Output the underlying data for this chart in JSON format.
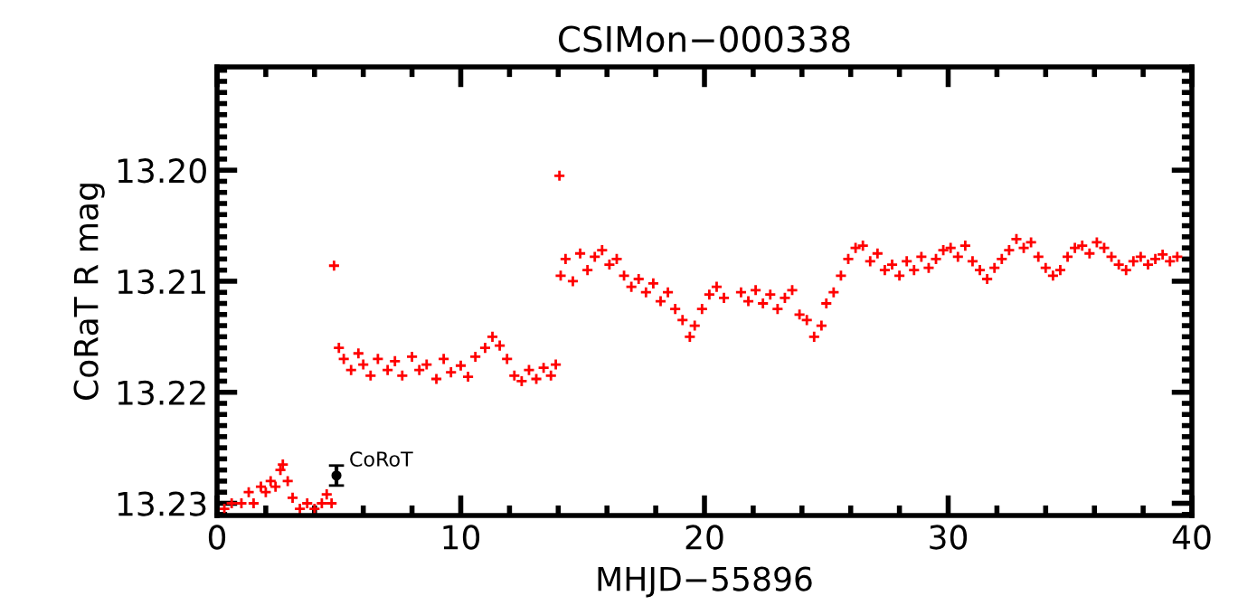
{
  "chart_data": {
    "type": "scatter",
    "title": "CSIMon−000338",
    "xlabel": "MHJD−55896",
    "ylabel": "CoRaT R mag",
    "xlim": [
      0,
      40
    ],
    "ylim": [
      13.2311,
      13.1907
    ],
    "xticks": [
      0,
      10,
      20,
      30,
      40
    ],
    "yticks": [
      {
        "value": 13.2,
        "label": "13.20"
      },
      {
        "value": 13.21,
        "label": "13.21"
      },
      {
        "value": 13.22,
        "label": "13.22"
      },
      {
        "value": 13.23,
        "label": "13.23"
      }
    ],
    "grid": false,
    "marker": "cross",
    "series": [
      {
        "color": "#ff0000",
        "x": [
          0.3,
          0.6,
          1.0,
          1.3,
          1.5,
          1.8,
          2.0,
          2.2,
          2.4,
          2.6,
          2.7,
          2.9,
          3.1,
          3.4,
          3.7,
          4.0,
          4.3,
          4.5,
          4.7,
          4.8,
          5.0,
          5.2,
          5.5,
          5.8,
          6.0,
          6.3,
          6.6,
          7.0,
          7.3,
          7.6,
          8.0,
          8.3,
          8.6,
          9.0,
          9.3,
          9.6,
          10.0,
          10.3,
          10.6,
          11.0,
          11.3,
          11.6,
          11.9,
          12.2,
          12.5,
          12.8,
          13.1,
          13.4,
          13.7,
          13.9,
          14.05,
          14.1,
          14.3,
          14.6,
          14.9,
          15.2,
          15.5,
          15.8,
          16.1,
          16.4,
          16.7,
          17.0,
          17.3,
          17.6,
          17.9,
          18.2,
          18.5,
          18.8,
          19.1,
          19.4,
          19.6,
          19.9,
          20.2,
          20.5,
          20.8,
          21.5,
          21.8,
          22.1,
          22.4,
          22.7,
          23.0,
          23.3,
          23.6,
          23.9,
          24.2,
          24.5,
          24.8,
          25.0,
          25.3,
          25.6,
          25.9,
          26.2,
          26.5,
          26.8,
          27.1,
          27.4,
          27.7,
          28.0,
          28.3,
          28.6,
          28.9,
          29.2,
          29.5,
          29.8,
          30.1,
          30.4,
          30.7,
          31.0,
          31.3,
          31.6,
          31.9,
          32.2,
          32.5,
          32.8,
          33.1,
          33.4,
          33.7,
          34.0,
          34.3,
          34.6,
          34.9,
          35.2,
          35.5,
          35.8,
          36.1,
          36.4,
          36.7,
          37.0,
          37.3,
          37.6,
          37.9,
          38.2,
          38.5,
          38.8,
          39.1,
          39.4
        ],
        "values": [
          13.2305,
          13.23,
          13.23,
          13.229,
          13.23,
          13.2285,
          13.229,
          13.228,
          13.2285,
          13.227,
          13.2265,
          13.228,
          13.2295,
          13.2305,
          13.23,
          13.2305,
          13.23,
          13.2292,
          13.23,
          13.2086,
          13.216,
          13.217,
          13.218,
          13.2165,
          13.2175,
          13.2185,
          13.217,
          13.218,
          13.2172,
          13.2185,
          13.2168,
          13.218,
          13.2175,
          13.2188,
          13.217,
          13.2182,
          13.2176,
          13.2186,
          13.2168,
          13.216,
          13.215,
          13.2158,
          13.217,
          13.2185,
          13.219,
          13.218,
          13.2188,
          13.2178,
          13.2185,
          13.2175,
          13.2005,
          13.2095,
          13.208,
          13.21,
          13.2075,
          13.209,
          13.2078,
          13.2072,
          13.2085,
          13.208,
          13.2095,
          13.2105,
          13.2098,
          13.211,
          13.2102,
          13.2118,
          13.211,
          13.2125,
          13.2135,
          13.215,
          13.214,
          13.2125,
          13.2112,
          13.2105,
          13.2115,
          13.211,
          13.2118,
          13.2108,
          13.212,
          13.2112,
          13.2125,
          13.2115,
          13.2108,
          13.213,
          13.2135,
          13.215,
          13.214,
          13.212,
          13.211,
          13.2095,
          13.208,
          13.207,
          13.2068,
          13.2082,
          13.2075,
          13.209,
          13.2085,
          13.2095,
          13.2082,
          13.209,
          13.2078,
          13.2088,
          13.208,
          13.2072,
          13.207,
          13.2078,
          13.2068,
          13.2082,
          13.209,
          13.2098,
          13.2088,
          13.208,
          13.2072,
          13.2062,
          13.207,
          13.2065,
          13.2078,
          13.2088,
          13.2095,
          13.209,
          13.2078,
          13.207,
          13.2068,
          13.2075,
          13.2065,
          13.207,
          13.2078,
          13.2085,
          13.209,
          13.2082,
          13.2078,
          13.2085,
          13.208,
          13.2076,
          13.2082,
          13.2078
        ]
      },
      {
        "name": "CoRoT",
        "color": "#000000",
        "marker": "circle",
        "x": [
          4.9
        ],
        "values": [
          13.2275
        ],
        "errors": [
          0.0009
        ]
      }
    ]
  }
}
